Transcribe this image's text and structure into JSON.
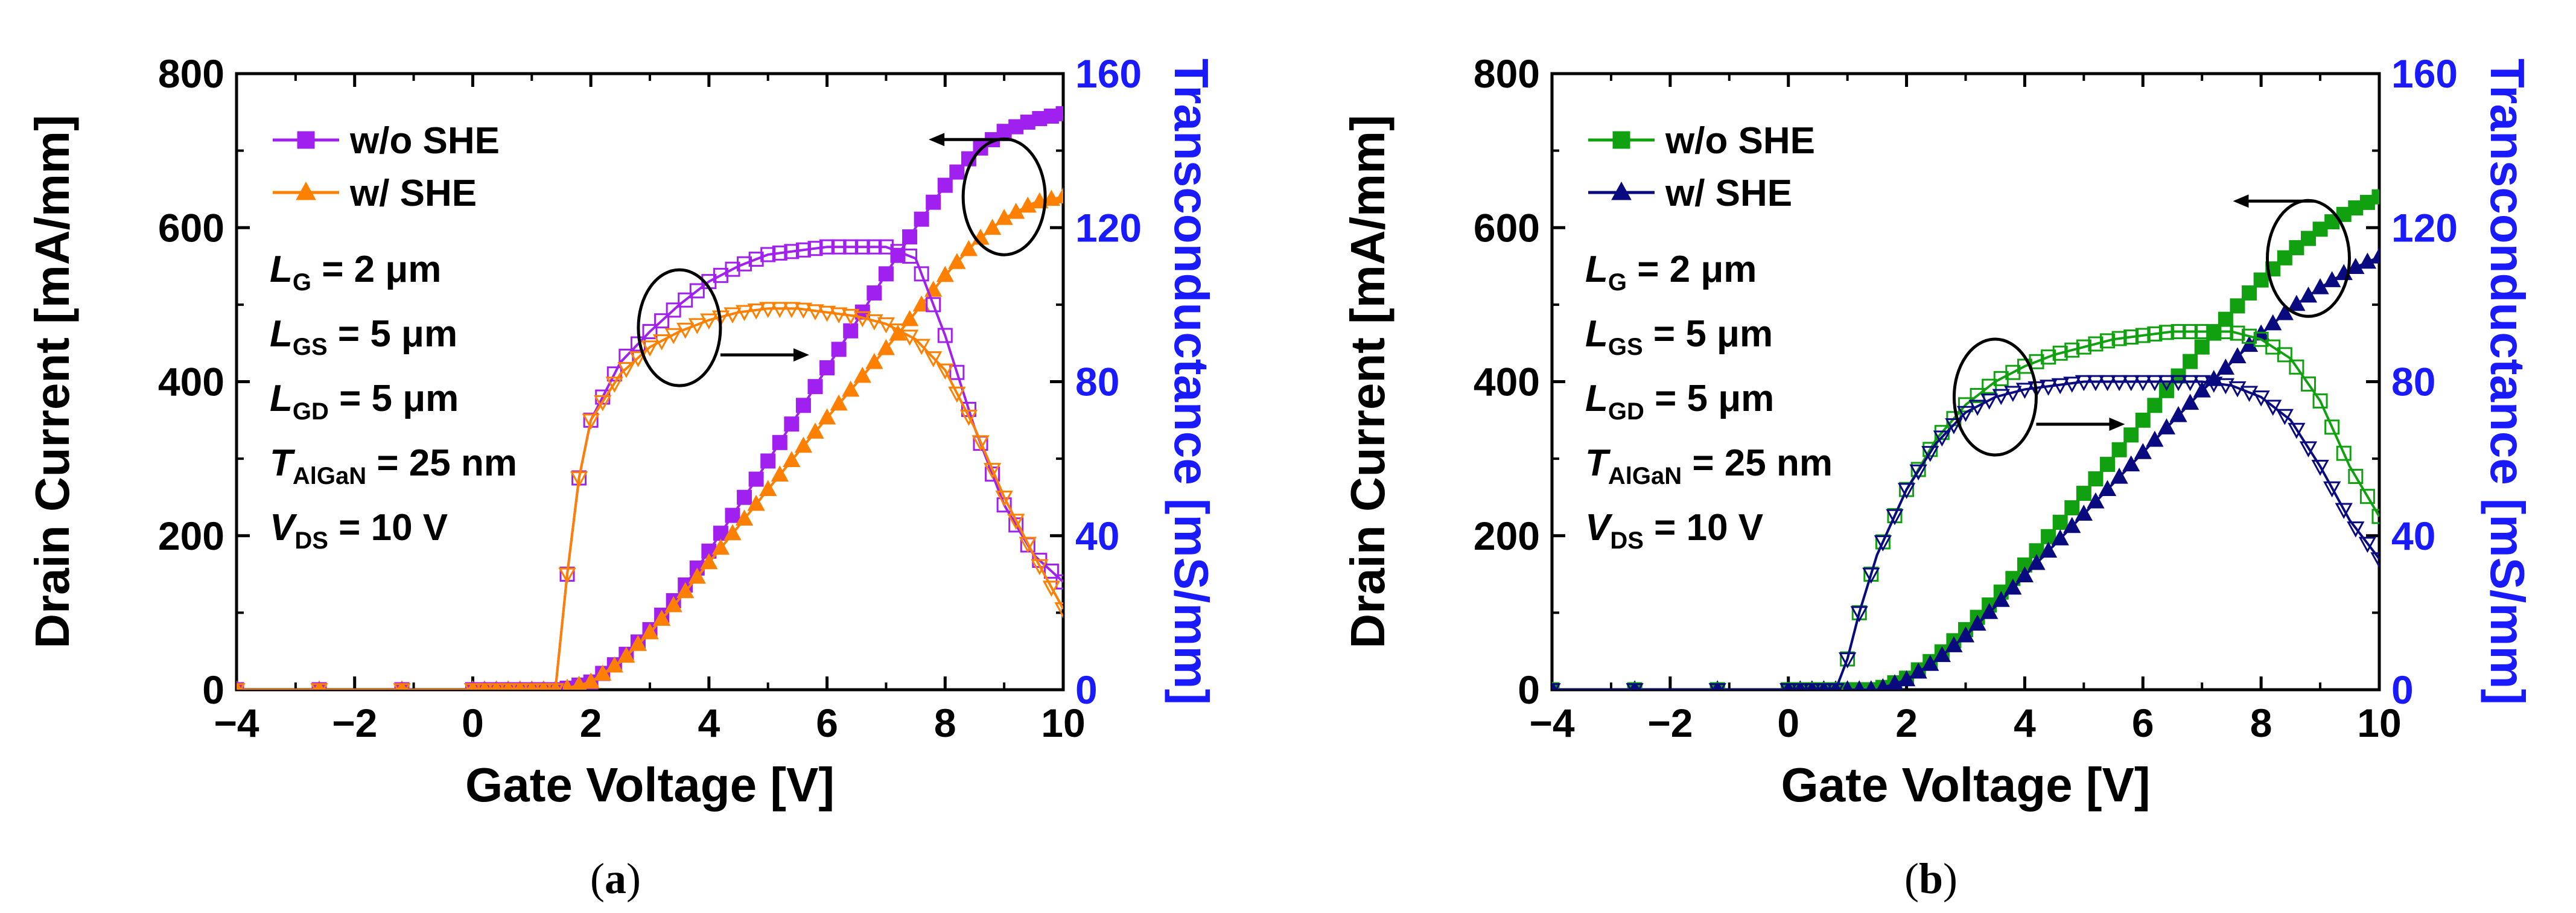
{
  "chart_data": [
    {
      "type": "line",
      "panel_label": "a",
      "xlabel": "Gate Voltage [V]",
      "ylabel_left": "Drain Current [mA/mm]",
      "ylabel_right": "Transconductance [mS/mm]",
      "xlim": [
        -4,
        10
      ],
      "ylim_left": [
        0,
        800
      ],
      "ylim_right": [
        0,
        160
      ],
      "x_ticks": [
        -4,
        -2,
        0,
        2,
        4,
        6,
        8,
        10
      ],
      "x_tick_labels": [
        "−4",
        "−2",
        "0",
        "2",
        "4",
        "6",
        "8",
        "10"
      ],
      "y_left_ticks": [
        0,
        200,
        400,
        600,
        800
      ],
      "y_left_tick_labels": [
        "0",
        "200",
        "400",
        "600",
        "800"
      ],
      "y_right_ticks": [
        0,
        40,
        80,
        120,
        160
      ],
      "y_right_tick_labels": [
        "0",
        "40",
        "80",
        "120",
        "160"
      ],
      "colors": {
        "right_axis": "#1a1aff"
      },
      "legend": [
        {
          "label": "w/o SHE",
          "color": "#a020f0",
          "marker": "square"
        },
        {
          "label": "w/ SHE",
          "color": "#ff8000",
          "marker": "triangle-up"
        }
      ],
      "parameters": [
        {
          "sym": "L",
          "sub": "G",
          "val": " = 2 μm"
        },
        {
          "sym": "L",
          "sub": "GS",
          "val": " = 5 μm"
        },
        {
          "sym": "L",
          "sub": "GD",
          "val": " = 5 μm"
        },
        {
          "sym": "T",
          "sub": "AlGaN",
          "val": " = 25 nm"
        },
        {
          "sym": "V",
          "sub": "DS",
          "val": " = 10 V"
        }
      ],
      "annotations": [
        {
          "type": "ellipse",
          "x": 9,
          "y_axis": "left",
          "y": 640,
          "arrow": "left",
          "target": "drain current (left axis)"
        },
        {
          "type": "ellipse",
          "x": 3.5,
          "y_axis": "right",
          "y": 94,
          "arrow": "right",
          "target": "transconductance (right axis)"
        }
      ],
      "series": [
        {
          "name": "w/o SHE drain current",
          "axis": "left",
          "color": "#a020f0",
          "marker": "square",
          "filled": true,
          "x": [
            -4,
            1.5,
            2,
            2.5,
            3,
            3.5,
            4,
            4.5,
            5,
            5.5,
            6,
            6.5,
            7,
            7.5,
            8,
            8.5,
            9,
            9.5,
            10
          ],
          "y": [
            0,
            0,
            10,
            38,
            78,
            125,
            180,
            238,
            297,
            357,
            418,
            478,
            540,
            600,
            655,
            698,
            725,
            740,
            748
          ]
        },
        {
          "name": "w/ SHE drain current",
          "axis": "left",
          "color": "#ff8000",
          "marker": "triangle-up",
          "filled": true,
          "x": [
            -4,
            1.5,
            2,
            2.5,
            3,
            3.5,
            4,
            4.5,
            5,
            5.5,
            6,
            6.5,
            7,
            7.5,
            8,
            8.5,
            9,
            9.5,
            10
          ],
          "y": [
            0,
            0,
            10,
            36,
            74,
            118,
            165,
            212,
            260,
            307,
            353,
            398,
            443,
            490,
            538,
            580,
            612,
            632,
            640
          ]
        },
        {
          "name": "w/o SHE transconductance",
          "axis": "right",
          "color": "#a020f0",
          "marker": "square",
          "filled": false,
          "x": [
            -4,
            1.4,
            1.6,
            1.8,
            2,
            2.5,
            3,
            3.5,
            4,
            4.5,
            5,
            5.5,
            6,
            6.5,
            7,
            7.5,
            8,
            8.5,
            9,
            9.5,
            10
          ],
          "y": [
            0,
            0,
            30,
            55,
            70,
            85,
            93,
            100,
            106,
            110,
            113,
            114,
            115,
            115,
            115,
            112,
            92,
            68,
            48,
            35,
            28
          ]
        },
        {
          "name": "w/ SHE transconductance",
          "axis": "right",
          "color": "#ff8000",
          "marker": "triangle-down",
          "filled": false,
          "x": [
            -4,
            1.4,
            1.6,
            1.8,
            2,
            2.5,
            3,
            3.5,
            4,
            4.5,
            5,
            5.5,
            6,
            6.5,
            7,
            7.5,
            8,
            8.5,
            9,
            9.5,
            10
          ],
          "y": [
            0,
            0,
            30,
            55,
            70,
            82,
            89,
            93,
            96,
            98,
            99,
            99,
            98,
            97,
            95,
            91,
            83,
            68,
            50,
            35,
            21
          ]
        }
      ]
    },
    {
      "type": "line",
      "panel_label": "b",
      "xlabel": "Gate Voltage [V]",
      "ylabel_left": "Drain Current [mA/mm]",
      "ylabel_right": "Transconductance [mS/mm]",
      "xlim": [
        -4,
        10
      ],
      "ylim_left": [
        0,
        800
      ],
      "ylim_right": [
        0,
        160
      ],
      "x_ticks": [
        -4,
        -2,
        0,
        2,
        4,
        6,
        8,
        10
      ],
      "x_tick_labels": [
        "−4",
        "−2",
        "0",
        "2",
        "4",
        "6",
        "8",
        "10"
      ],
      "y_left_ticks": [
        0,
        200,
        400,
        600,
        800
      ],
      "y_left_tick_labels": [
        "0",
        "200",
        "400",
        "600",
        "800"
      ],
      "y_right_ticks": [
        0,
        40,
        80,
        120,
        160
      ],
      "y_right_tick_labels": [
        "0",
        "40",
        "80",
        "120",
        "160"
      ],
      "colors": {
        "right_axis": "#1a1aff"
      },
      "legend": [
        {
          "label": "w/o SHE",
          "color": "#10a010",
          "marker": "square"
        },
        {
          "label": "w/ SHE",
          "color": "#0a0a80",
          "marker": "triangle-up"
        }
      ],
      "parameters": [
        {
          "sym": "L",
          "sub": "G",
          "val": " = 2 μm"
        },
        {
          "sym": "L",
          "sub": "GS",
          "val": " = 5 μm"
        },
        {
          "sym": "L",
          "sub": "GD",
          "val": " = 5 μm"
        },
        {
          "sym": "T",
          "sub": "AlGaN",
          "val": " = 25 nm"
        },
        {
          "sym": "V",
          "sub": "DS",
          "val": " = 10 V"
        }
      ],
      "annotations": [
        {
          "type": "ellipse",
          "x": 8.8,
          "y_axis": "left",
          "y": 560,
          "arrow": "left",
          "target": "drain current (left axis)"
        },
        {
          "type": "ellipse",
          "x": 3.5,
          "y_axis": "right",
          "y": 76,
          "arrow": "right",
          "target": "transconductance (right axis)"
        }
      ],
      "series": [
        {
          "name": "w/o SHE drain current",
          "axis": "left",
          "color": "#10a010",
          "marker": "square",
          "filled": true,
          "x": [
            -4,
            1.5,
            2,
            2.5,
            3,
            3.5,
            4,
            4.5,
            5,
            5.5,
            6,
            6.5,
            7,
            7.5,
            8,
            8.5,
            9,
            9.5,
            10
          ],
          "y": [
            0,
            0,
            15,
            42,
            78,
            118,
            162,
            208,
            255,
            302,
            350,
            398,
            445,
            490,
            532,
            568,
            598,
            622,
            640
          ]
        },
        {
          "name": "w/ SHE drain current",
          "axis": "left",
          "color": "#0a0a80",
          "marker": "triangle-up",
          "filled": true,
          "x": [
            -4,
            1.5,
            2,
            2.5,
            3,
            3.5,
            4,
            4.5,
            5,
            5.5,
            6,
            6.5,
            7,
            7.5,
            8,
            8.5,
            9,
            9.5,
            10
          ],
          "y": [
            0,
            0,
            13,
            38,
            70,
            108,
            148,
            188,
            228,
            268,
            308,
            348,
            388,
            425,
            462,
            495,
            522,
            545,
            562
          ]
        },
        {
          "name": "w/o SHE transconductance",
          "axis": "right",
          "color": "#10a010",
          "marker": "square",
          "filled": false,
          "x": [
            -4,
            0.8,
            1,
            1.2,
            1.5,
            2,
            2.5,
            3,
            3.5,
            4,
            4.5,
            5,
            5.5,
            6,
            6.5,
            7,
            7.5,
            8,
            8.5,
            9,
            9.5,
            10
          ],
          "y": [
            0,
            0,
            8,
            20,
            35,
            52,
            65,
            74,
            80,
            84,
            87,
            89,
            91,
            92,
            93,
            93,
            93,
            91,
            86,
            75,
            58,
            45
          ]
        },
        {
          "name": "w/ SHE transconductance",
          "axis": "right",
          "color": "#0a0a80",
          "marker": "triangle-down",
          "filled": false,
          "x": [
            -4,
            0.8,
            1,
            1.2,
            1.5,
            2,
            2.5,
            3,
            3.5,
            4,
            4.5,
            5,
            5.5,
            6,
            6.5,
            7,
            7.5,
            8,
            8.5,
            9,
            9.5,
            10
          ],
          "y": [
            0,
            0,
            8,
            20,
            35,
            52,
            64,
            72,
            76,
            78,
            79,
            80,
            80,
            80,
            80,
            80,
            79,
            76,
            70,
            58,
            44,
            34
          ]
        }
      ]
    }
  ]
}
